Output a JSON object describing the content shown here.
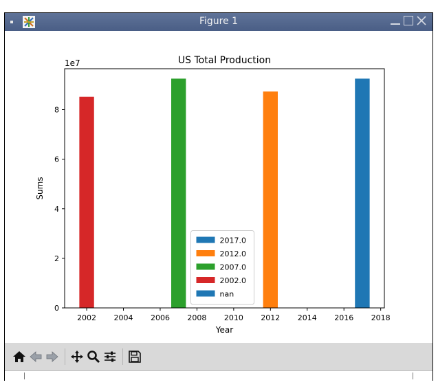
{
  "window": {
    "title": "Figure 1"
  },
  "colors": {
    "blue": "#1f77b4",
    "orange": "#ff7f0e",
    "green": "#2ca02c",
    "red": "#d62728"
  },
  "toolbar": {
    "buttons": [
      {
        "name": "home-button",
        "icon": "home-icon"
      },
      {
        "name": "back-button",
        "icon": "arrow-left-icon"
      },
      {
        "name": "forward-button",
        "icon": "arrow-right-icon"
      },
      {
        "name": "pan-button",
        "icon": "move-icon"
      },
      {
        "name": "zoom-button",
        "icon": "magnifier-icon"
      },
      {
        "name": "configure-subplots-button",
        "icon": "sliders-icon"
      },
      {
        "name": "save-button",
        "icon": "floppy-disk-icon"
      }
    ]
  },
  "chart_data": {
    "type": "bar",
    "title": "US Total Production",
    "xlabel": "Year",
    "ylabel": "Sums",
    "y_offset_text": "1e7",
    "xlim": [
      2000.8,
      2018.2
    ],
    "ylim": [
      0,
      96500000
    ],
    "xticks": [
      2002,
      2004,
      2006,
      2008,
      2010,
      2012,
      2014,
      2016,
      2018
    ],
    "yticks": [
      0,
      20000000,
      40000000,
      60000000,
      80000000
    ],
    "ytick_labels": [
      "0",
      "2",
      "4",
      "6",
      "8"
    ],
    "bar_width": 0.8,
    "legend_position": "lower center",
    "series": [
      {
        "name": "2017.0",
        "color": "#1f77b4",
        "x": [
          2017
        ],
        "values": [
          92500000
        ]
      },
      {
        "name": "2012.0",
        "color": "#ff7f0e",
        "x": [
          2012
        ],
        "values": [
          87300000
        ]
      },
      {
        "name": "2007.0",
        "color": "#2ca02c",
        "x": [
          2007
        ],
        "values": [
          92500000
        ]
      },
      {
        "name": "2002.0",
        "color": "#d62728",
        "x": [
          2002
        ],
        "values": [
          85200000
        ]
      },
      {
        "name": "nan",
        "color": "#1f77b4",
        "x": [],
        "values": []
      }
    ]
  }
}
